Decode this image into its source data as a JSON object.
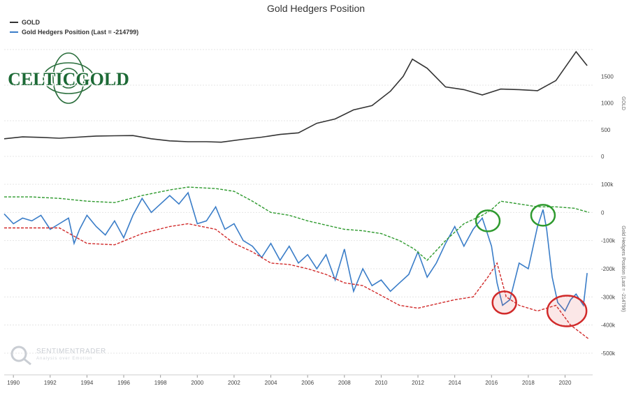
{
  "chart_data": {
    "type": "line",
    "title": "Gold Hedgers Position",
    "legend": [
      {
        "label": "GOLD",
        "color": "#333333"
      },
      {
        "label": "Gold Hedgers Position (Last = -214799)",
        "color": "#3a7dc8"
      }
    ],
    "x_ticks": [
      "1990",
      "1992",
      "1994",
      "1996",
      "1998",
      "2000",
      "2002",
      "2004",
      "2006",
      "2008",
      "2010",
      "2012",
      "2014",
      "2016",
      "2018",
      "2020"
    ],
    "x_range": [
      1989.5,
      2021.5
    ],
    "panels": [
      {
        "name": "GOLD",
        "axis_title": "GOLD",
        "ylim": [
          0,
          2000
        ],
        "y_ticks": [
          "0",
          "500",
          "1000",
          "1500"
        ],
        "series": [
          {
            "name": "GOLD",
            "color": "#333333",
            "x": [
              1989.5,
              1990.5,
              1991.5,
              1992.5,
              1993.5,
              1994.5,
              1995.5,
              1996.5,
              1997.5,
              1998.5,
              1999.5,
              2000.5,
              2001.3,
              2002.5,
              2003.5,
              2004.5,
              2005.5,
              2006.5,
              2007.5,
              2008.5,
              2009.5,
              2010.5,
              2011.2,
              2011.7,
              2012.5,
              2013.5,
              2014.5,
              2015.5,
              2016.5,
              2017.5,
              2018.5,
              2019.5,
              2020.6,
              2021.2
            ],
            "values": [
              330,
              365,
              355,
              340,
              360,
              380,
              385,
              390,
              330,
              290,
              275,
              275,
              265,
              320,
              360,
              410,
              440,
              620,
              700,
              870,
              950,
              1220,
              1500,
              1820,
              1650,
              1300,
              1250,
              1150,
              1260,
              1250,
              1230,
              1420,
              1960,
              1700
            ]
          }
        ]
      },
      {
        "name": "Gold Hedgers Position",
        "axis_title": "Gold Hedgers Position (Last = -214799)",
        "ylim": [
          -500000,
          100000
        ],
        "y_ticks": [
          "100k",
          "0",
          "-100k",
          "-200k",
          "-300k",
          "-400k",
          "-500k"
        ],
        "series": [
          {
            "name": "Hedgers Position",
            "color": "#3a7dc8",
            "x": [
              1989.5,
              1990,
              1990.5,
              1991,
              1991.5,
              1992,
              1992.5,
              1993,
              1993.3,
              1993.6,
              1994,
              1994.5,
              1995,
              1995.5,
              1996,
              1996.5,
              1997,
              1997.5,
              1998,
              1998.5,
              1999,
              1999.5,
              2000,
              2000.5,
              2001,
              2001.5,
              2002,
              2002.5,
              2003,
              2003.5,
              2004,
              2004.5,
              2005,
              2005.5,
              2006,
              2006.5,
              2007,
              2007.5,
              2008,
              2008.5,
              2009,
              2009.5,
              2010,
              2010.5,
              2011,
              2011.5,
              2012,
              2012.5,
              2013,
              2013.5,
              2014,
              2014.5,
              2015,
              2015.5,
              2016,
              2016.3,
              2016.6,
              2017,
              2017.5,
              2018,
              2018.5,
              2018.8,
              2019,
              2019.3,
              2019.6,
              2020,
              2020.3,
              2020.6,
              2021,
              2021.2
            ],
            "values": [
              -5000,
              -40000,
              -20000,
              -30000,
              -10000,
              -60000,
              -40000,
              -20000,
              -110000,
              -60000,
              -10000,
              -50000,
              -80000,
              -30000,
              -90000,
              -10000,
              50000,
              0,
              30000,
              60000,
              30000,
              70000,
              -40000,
              -30000,
              20000,
              -60000,
              -40000,
              -100000,
              -120000,
              -160000,
              -110000,
              -170000,
              -120000,
              -180000,
              -150000,
              -200000,
              -150000,
              -240000,
              -130000,
              -280000,
              -200000,
              -260000,
              -240000,
              -280000,
              -250000,
              -220000,
              -140000,
              -230000,
              -180000,
              -110000,
              -50000,
              -120000,
              -60000,
              -20000,
              -120000,
              -250000,
              -330000,
              -310000,
              -180000,
              -200000,
              -50000,
              10000,
              -60000,
              -230000,
              -320000,
              -350000,
              -310000,
              -290000,
              -330000,
              -215000
            ]
          },
          {
            "name": "Upper Band",
            "color": "#2e9a2e",
            "x": [
              1989.5,
              1991,
              1992.5,
              1994,
              1995.5,
              1997,
              1998.5,
              1999.5,
              2001,
              2002,
              2003,
              2004,
              2005,
              2006,
              2007,
              2008,
              2009,
              2010,
              2011,
              2011.8,
              2012.5,
              2013.5,
              2014.5,
              2015.5,
              2016,
              2016.5,
              2017.5,
              2018.5,
              2019.5,
              2020.5,
              2021.3
            ],
            "values": [
              55000,
              55000,
              50000,
              40000,
              35000,
              60000,
              80000,
              90000,
              85000,
              75000,
              40000,
              0,
              -10000,
              -30000,
              -45000,
              -60000,
              -65000,
              -75000,
              -100000,
              -130000,
              -170000,
              -100000,
              -40000,
              -10000,
              10000,
              40000,
              30000,
              20000,
              20000,
              15000,
              0
            ]
          },
          {
            "name": "Lower Band",
            "color": "#d12a2a",
            "x": [
              1989.5,
              1991,
              1992.5,
              1994,
              1995.5,
              1997,
              1998.5,
              1999.5,
              2001,
              2002,
              2003,
              2004,
              2005,
              2006,
              2007,
              2008,
              2009,
              2010,
              2011,
              2012,
              2013,
              2014,
              2015,
              2015.8,
              2016.3,
              2016.8,
              2017.5,
              2018.5,
              2019.5,
              2020.3,
              2021.3
            ],
            "values": [
              -55000,
              -55000,
              -55000,
              -110000,
              -115000,
              -75000,
              -50000,
              -40000,
              -60000,
              -110000,
              -140000,
              -180000,
              -185000,
              -200000,
              -220000,
              -250000,
              -260000,
              -295000,
              -330000,
              -340000,
              -325000,
              -310000,
              -300000,
              -230000,
              -180000,
              -300000,
              -330000,
              -350000,
              -330000,
              -400000,
              -450000
            ]
          }
        ]
      }
    ],
    "annotations": [
      {
        "type": "circle",
        "color": "#2e9a2e",
        "x": 2015.8,
        "y": -30000
      },
      {
        "type": "circle",
        "color": "#2e9a2e",
        "x": 2018.8,
        "y": -10000
      },
      {
        "type": "circle",
        "color": "#d12a2a",
        "x": 2016.7,
        "y": -320000
      },
      {
        "type": "circle",
        "color": "#d12a2a",
        "x": 2020.1,
        "y": -350000
      }
    ]
  },
  "logos": {
    "celticgold": "CELTICGOLD",
    "watermark": "SENTIMENTRADER",
    "watermark_sub": "Analysis over Emotion"
  }
}
